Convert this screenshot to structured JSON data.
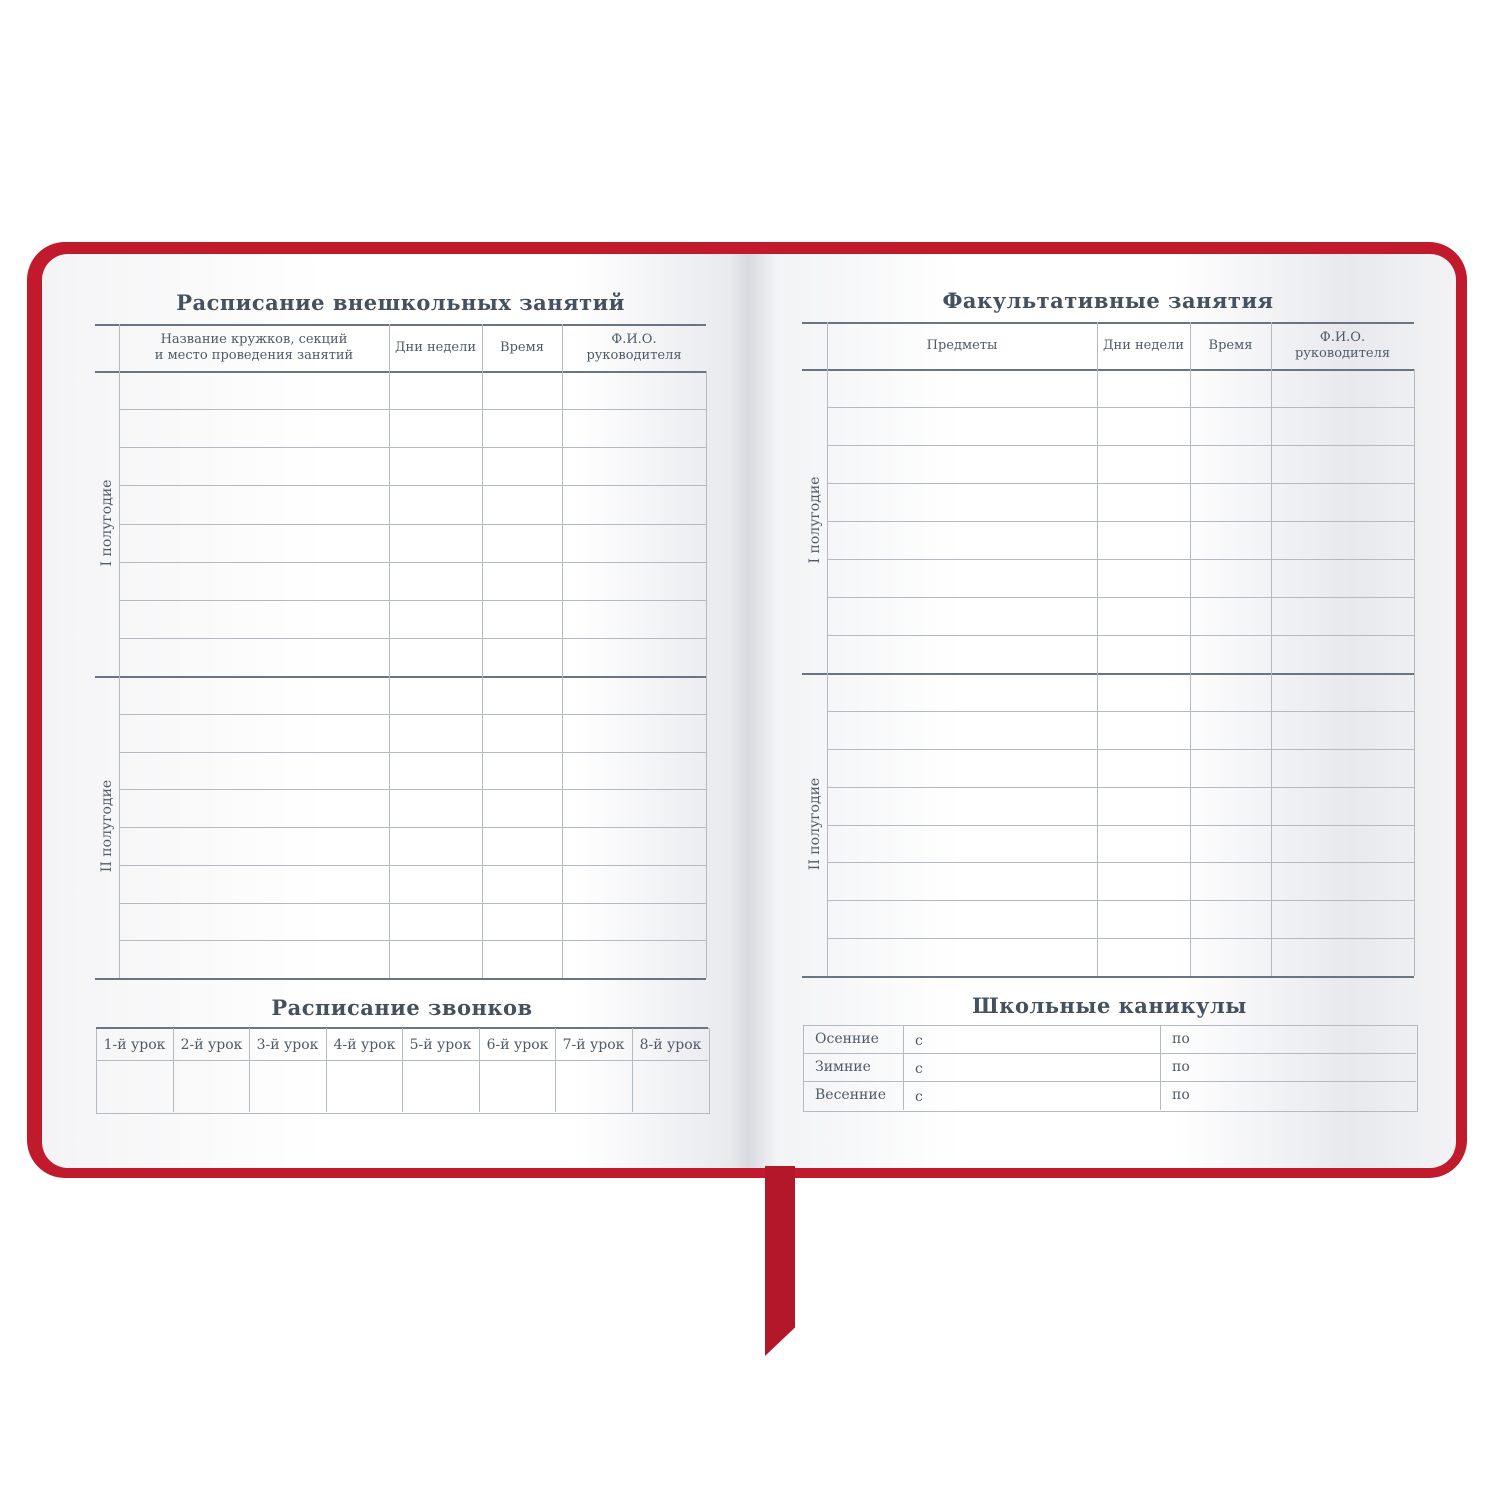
{
  "left_page": {
    "title": "Расписание внешкольных занятий",
    "columns": [
      "Название кружков, секций\nи место проведения занятий",
      "Дни недели",
      "Время",
      "Ф.И.О.\nруководителя"
    ],
    "sections": [
      "I полугодие",
      "II полугодие"
    ],
    "rows_per_section": 8,
    "bells": {
      "title": "Расписание  звонков",
      "lessons": [
        "1-й урок",
        "2-й урок",
        "3-й урок",
        "4-й урок",
        "5-й урок",
        "6-й урок",
        "7-й урок",
        "8-й урок"
      ]
    }
  },
  "right_page": {
    "title": "Факультативные занятия",
    "columns": [
      "Предметы",
      "Дни недели",
      "Время",
      "Ф.И.О.\nруководителя"
    ],
    "sections": [
      "I полугодие",
      "II полугодие"
    ],
    "rows_per_section": 8,
    "holidays": {
      "title": "Школьные  каникулы",
      "rows": [
        {
          "name": "Осенние",
          "from": "с",
          "to": "по"
        },
        {
          "name": "Зимние",
          "from": "с",
          "to": "по"
        },
        {
          "name": "Весенние",
          "from": "с",
          "to": "по"
        }
      ]
    }
  },
  "colors": {
    "cover": "#c11a2c",
    "ink": "#45515e"
  }
}
